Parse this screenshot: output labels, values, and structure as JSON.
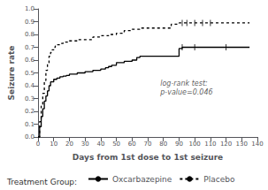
{
  "chart_data": {
    "type": "step",
    "xlabel": "Days from 1st dose to 1st seizure",
    "ylabel": "Seizure rate",
    "xlim": [
      0,
      140
    ],
    "ylim": [
      0.0,
      1.0
    ],
    "xticks": [
      0,
      10,
      20,
      30,
      40,
      50,
      60,
      70,
      80,
      90,
      100,
      110,
      120,
      130,
      140
    ],
    "yticks": [
      {
        "value": 0.0,
        "label": "0.0"
      },
      0.1,
      0.2,
      0.3,
      0.4,
      0.5,
      0.6,
      0.7,
      0.8,
      0.9,
      {
        "value": 1.0,
        "label": "1.0"
      }
    ],
    "grid": false,
    "legend": "bottom",
    "legend_title": "Treatment Group:",
    "annotations": [
      {
        "text": "log-rank test:\np-value=0.046",
        "x": 78,
        "y": 0.38
      }
    ],
    "series": [
      {
        "name": "Oxcarbazepine",
        "color": "#000000",
        "line_style": "solid",
        "x": [
          0,
          1,
          2,
          3,
          4,
          5,
          6,
          7,
          8,
          10,
          12,
          14,
          16,
          18,
          20,
          25,
          30,
          35,
          40,
          43,
          45,
          47,
          50,
          55,
          60,
          63,
          65,
          90,
          92,
          95,
          135
        ],
        "values": [
          0.0,
          0.08,
          0.16,
          0.22,
          0.28,
          0.32,
          0.36,
          0.4,
          0.43,
          0.45,
          0.46,
          0.47,
          0.475,
          0.48,
          0.49,
          0.5,
          0.51,
          0.52,
          0.53,
          0.54,
          0.55,
          0.56,
          0.58,
          0.59,
          0.6,
          0.62,
          0.63,
          0.69,
          0.7,
          0.7,
          0.7
        ],
        "censor_x": [
          92,
          100,
          120
        ],
        "censor_y": [
          0.7,
          0.7,
          0.7
        ]
      },
      {
        "name": "Placebo",
        "color": "#000000",
        "line_style": "dashed",
        "x": [
          0,
          1,
          2,
          3,
          4,
          5,
          6,
          7,
          8,
          9,
          10,
          11,
          12,
          14,
          16,
          20,
          25,
          35,
          40,
          45,
          50,
          55,
          60,
          65,
          85,
          90,
          135
        ],
        "values": [
          0.0,
          0.12,
          0.24,
          0.34,
          0.44,
          0.52,
          0.58,
          0.63,
          0.66,
          0.68,
          0.7,
          0.71,
          0.72,
          0.73,
          0.74,
          0.75,
          0.76,
          0.78,
          0.79,
          0.8,
          0.81,
          0.83,
          0.84,
          0.85,
          0.88,
          0.89,
          0.89
        ],
        "censor_x": [
          92,
          95,
          100,
          105,
          110
        ],
        "censor_y": [
          0.89,
          0.89,
          0.89,
          0.89,
          0.89
        ]
      }
    ]
  }
}
